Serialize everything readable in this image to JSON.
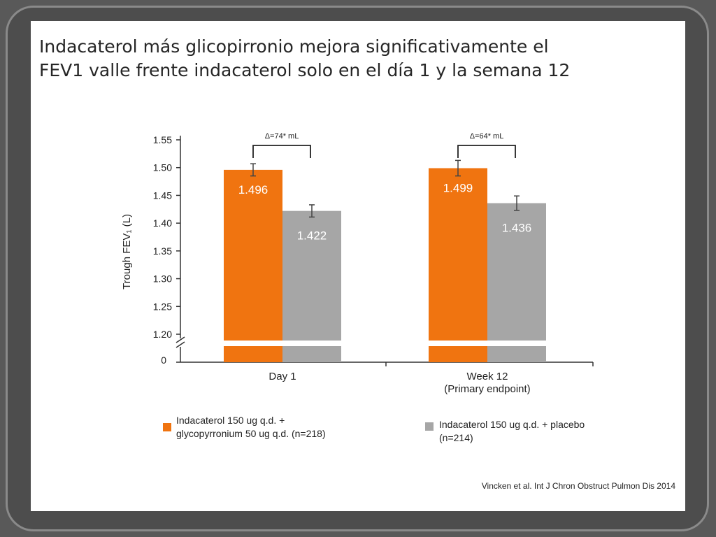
{
  "slide": {
    "title_line1": "Indacaterol más glicopirronio mejora significativamente el",
    "title_line2": "FEV1 valle frente indacaterol solo en el día 1 y la semana 12",
    "citation": "Vincken et al. Int J Chron Obstruct Pulmon Dis 2014"
  },
  "chart_data": {
    "type": "bar",
    "categories": [
      "Day 1",
      "Week 12"
    ],
    "category_sublabels": [
      "",
      "(Primary endpoint)"
    ],
    "series": [
      {
        "name": "Indacaterol 150 ug q.d. + glycopyrronium 50 ug q.d. (n=218)",
        "legend_line1": "Indacaterol 150 ug q.d. +",
        "legend_line2": "glycopyrronium 50 ug q.d. (n=218)",
        "color": "#f07410",
        "values": [
          1.496,
          1.499
        ],
        "errors": [
          0.011,
          0.014
        ],
        "value_labels": [
          "1.496",
          "1.499"
        ]
      },
      {
        "name": "Indacaterol 150 ug q.d. + placebo (n=214)",
        "legend_line1": "Indacaterol 150 ug q.d. + placebo",
        "legend_line2": "(n=214)",
        "color": "#a6a6a6",
        "values": [
          1.422,
          1.436
        ],
        "errors": [
          0.011,
          0.013
        ],
        "value_labels": [
          "1.422",
          "1.436"
        ]
      }
    ],
    "ylabel": "Trough  FEV₁ (L)",
    "ylim": [
      1.2,
      1.55
    ],
    "yticks": [
      "1.55",
      "1.50",
      "1.45",
      "1.40",
      "1.35",
      "1.30",
      "1.25",
      "1.20"
    ],
    "ytick_values": [
      1.55,
      1.5,
      1.45,
      1.4,
      1.35,
      1.3,
      1.25,
      1.2
    ],
    "y_zero_label": "0",
    "axis_break": true,
    "annotations": [
      "Δ=74* mL",
      "Δ=64* mL"
    ],
    "grid": false,
    "legend_position": "bottom"
  }
}
